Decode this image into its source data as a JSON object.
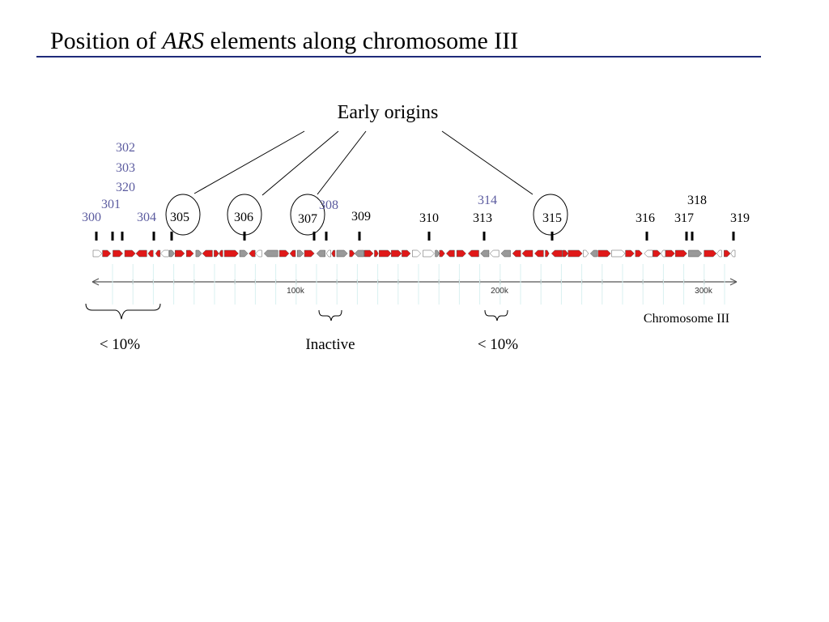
{
  "title": {
    "before": "Position of ",
    "italic": "ARS",
    "after": " elements along chromosome III"
  },
  "heading": "Early origins",
  "ars_labels": [
    "300",
    "301",
    "302",
    "303",
    "320",
    "304",
    "305",
    "306",
    "307",
    "308",
    "309",
    "310",
    "313",
    "314",
    "315",
    "316",
    "317",
    "318",
    "319"
  ],
  "axis_labels": [
    "100k",
    "200k",
    "300k"
  ],
  "chromosome": "Chromosome III",
  "annotations": [
    "< 10%",
    "Inactive",
    "< 10%"
  ]
}
